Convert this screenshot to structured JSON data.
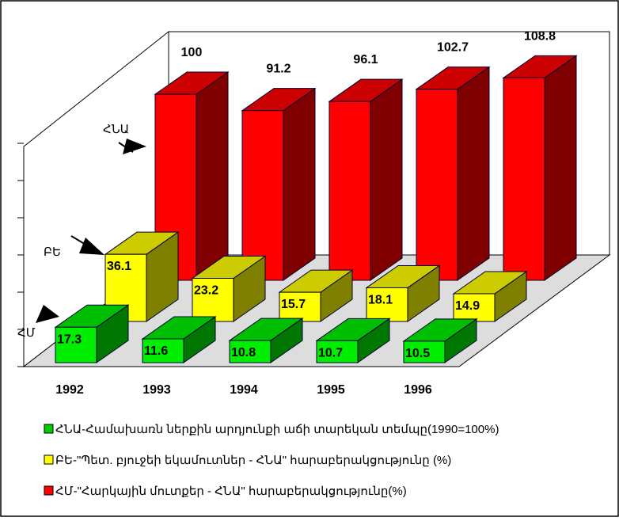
{
  "chart_data": {
    "type": "bar3d",
    "categories": [
      "1992",
      "1993",
      "1994",
      "1995",
      "1996"
    ],
    "depth_labels": [
      "ՀՆԱ",
      "ԲԵ",
      "ՀՄ"
    ],
    "series": [
      {
        "name": "ՀՆԱ-Համախառն ներքին արդյունքի աճի տարեկան տեմպը(1990=100%)",
        "color": "#ff0000",
        "legend_color": "#00cc00",
        "values": [
          100,
          91.2,
          96.1,
          102.7,
          108.8
        ]
      },
      {
        "name": "ԲԵ-\"Պետ. բյուջեի եկամուտներ - ՀՆԱ\" հարաբերակցությունը (%)",
        "color": "#ffff00",
        "legend_color": "#ffff00",
        "values": [
          36.1,
          23.2,
          15.7,
          18.1,
          14.9
        ]
      },
      {
        "name": "ՀՄ-\"Հարկային մուտքեր - ՀՆԱ\" հարաբերակցությունը(%)",
        "color": "#00ee00",
        "legend_color": "#ff0000",
        "values": [
          17.3,
          11.6,
          10.8,
          10.7,
          10.5
        ]
      }
    ],
    "ylim": [
      0,
      120
    ],
    "yticks": [
      0,
      20,
      40,
      60,
      80,
      100,
      120
    ]
  }
}
